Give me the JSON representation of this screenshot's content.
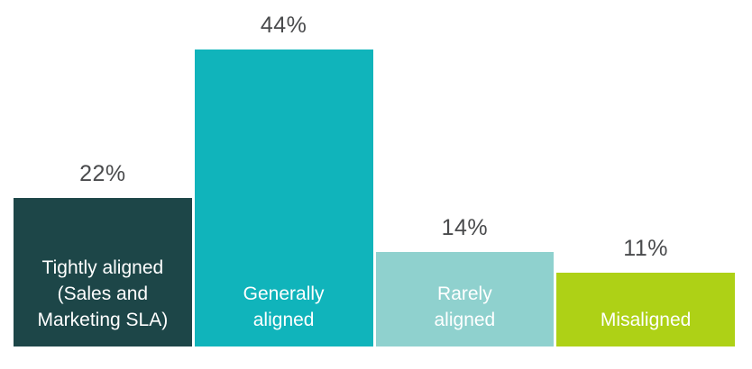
{
  "chart_data": {
    "type": "bar",
    "title": "",
    "xlabel": "",
    "ylabel": "",
    "categories": [
      "Tightly aligned (Sales and Marketing SLA)",
      "Generally aligned",
      "Rarely aligned",
      "Misaligned"
    ],
    "values": [
      22,
      44,
      14,
      11
    ],
    "value_labels": [
      "22%",
      "44%",
      "14%",
      "11%"
    ],
    "colors": [
      "#1d4648",
      "#10b4bb",
      "#8fd1ce",
      "#aed116"
    ],
    "ylim": [
      0,
      44
    ],
    "grid": false,
    "legend": false,
    "value_label_color": "#4a4b4d",
    "bar_label_color": "#ffffff",
    "background_color": "#ffffff"
  }
}
